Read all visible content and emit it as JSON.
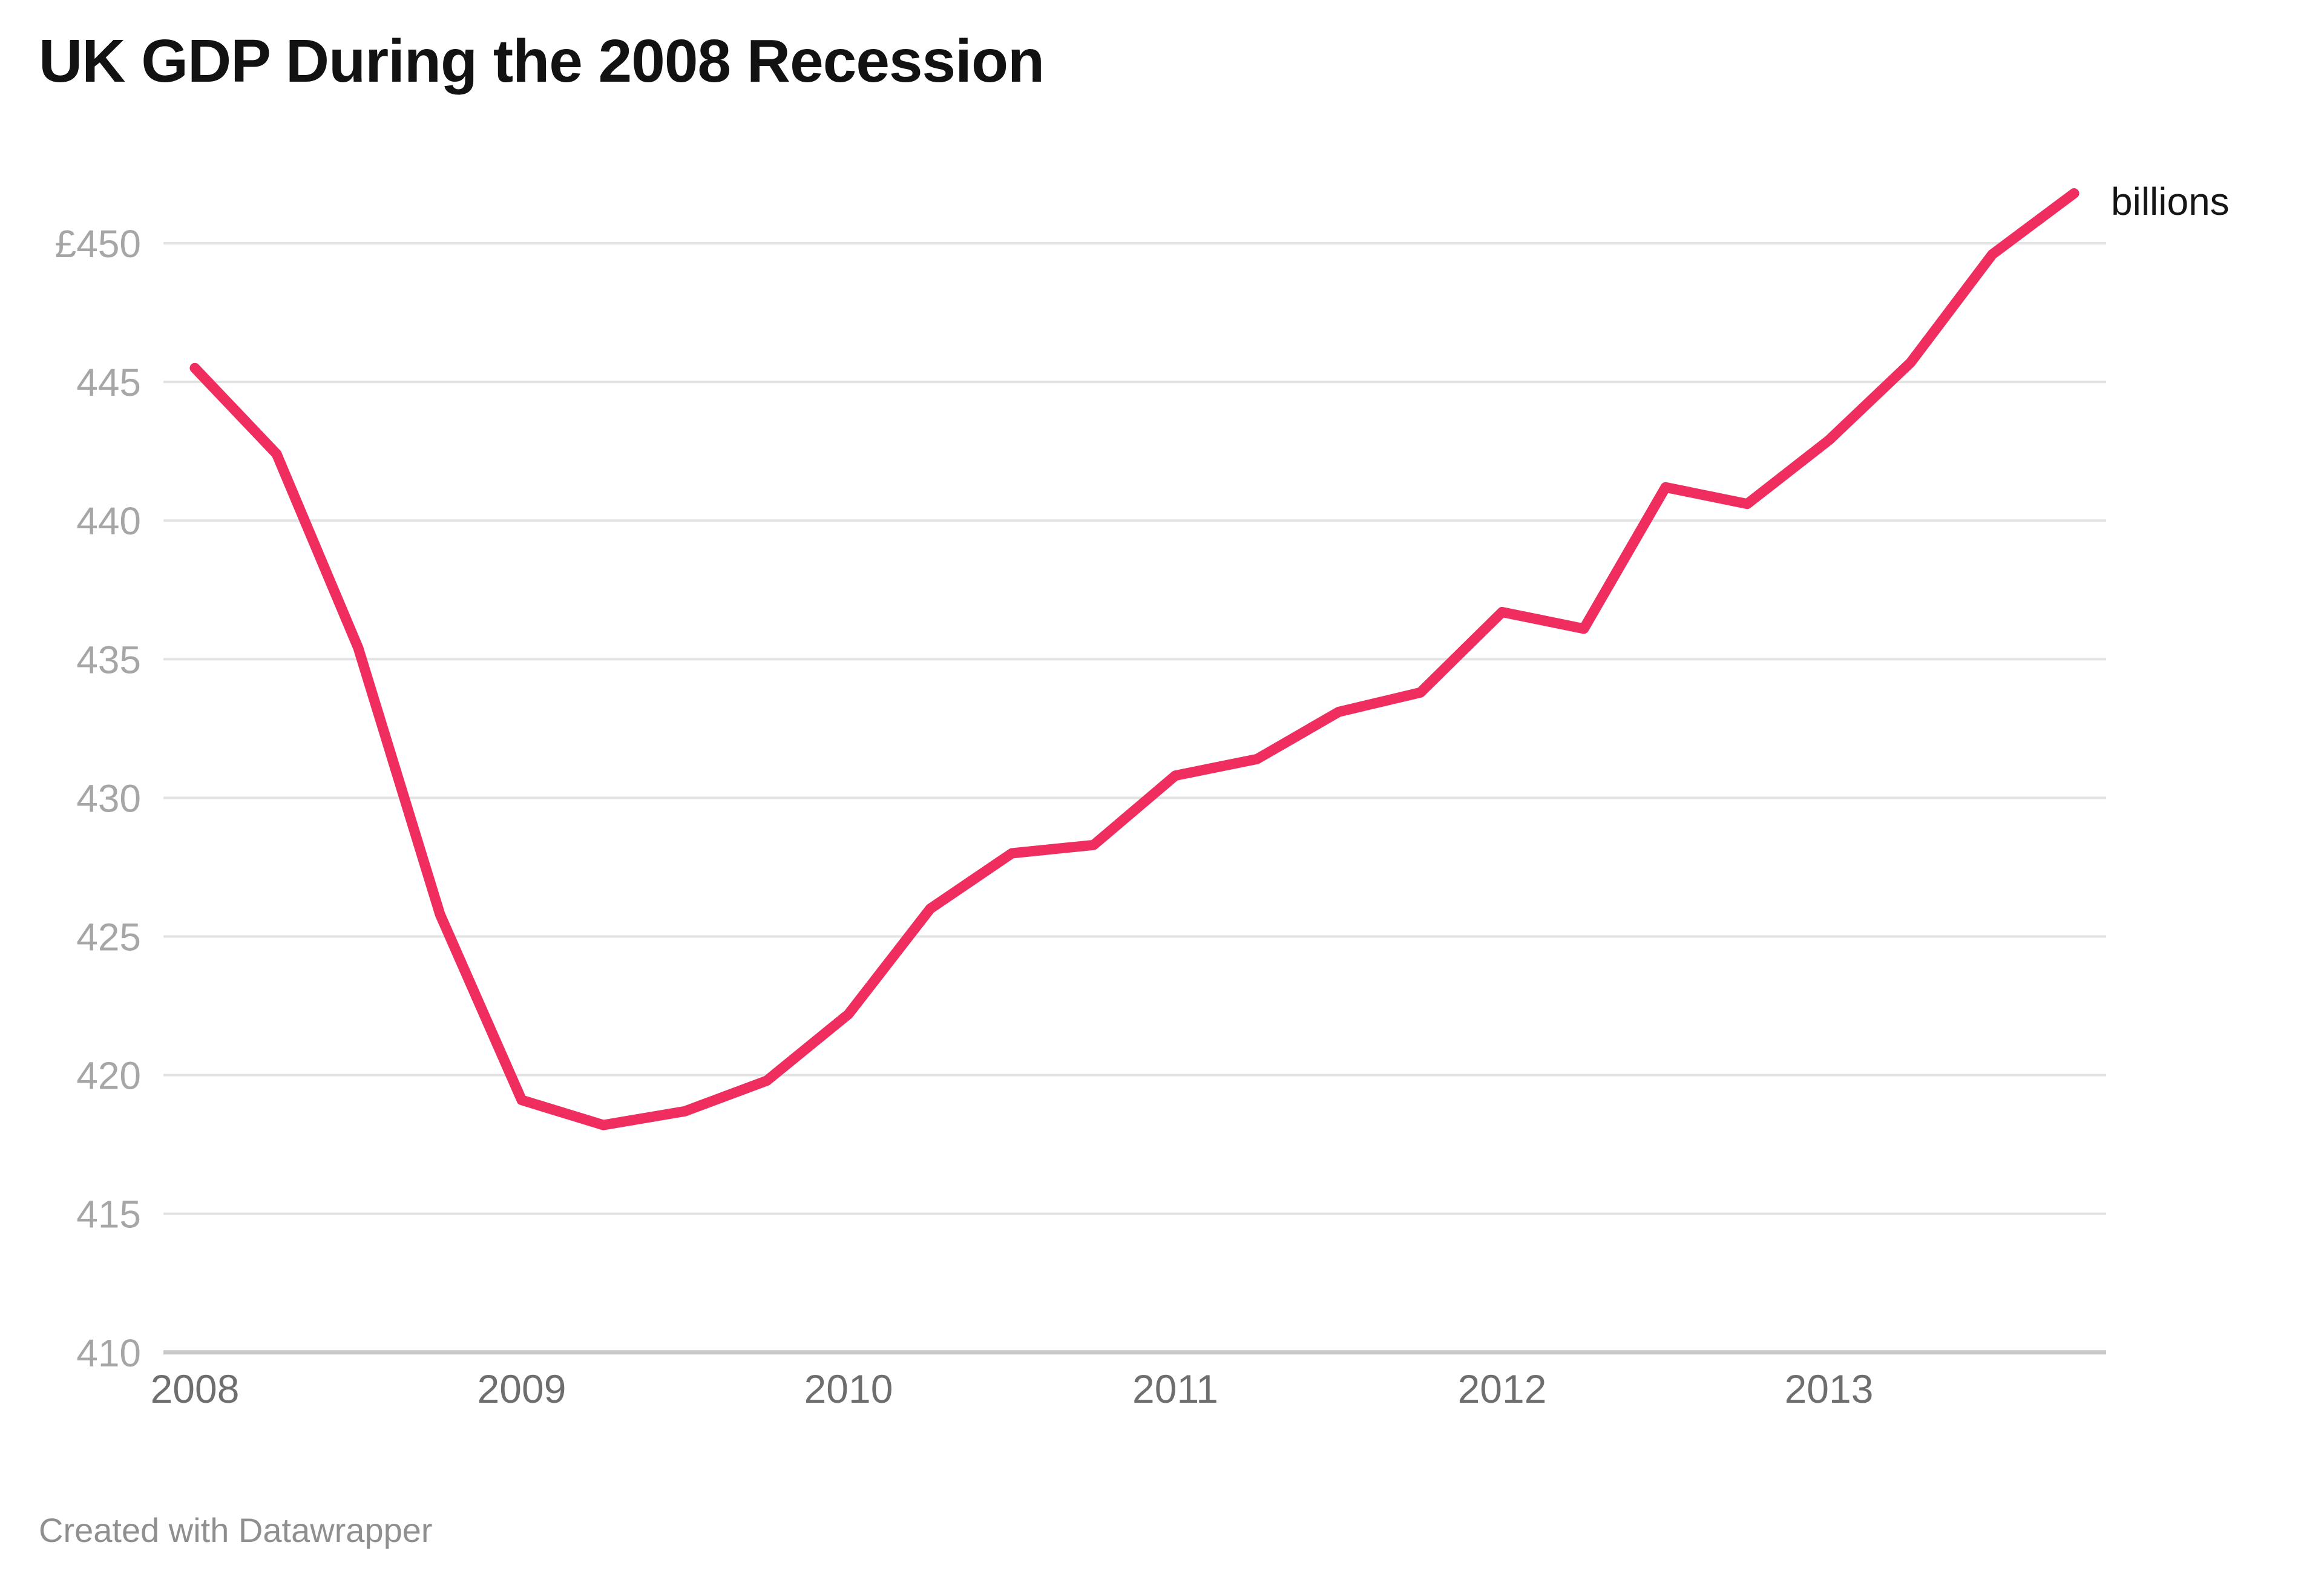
{
  "title": "UK GDP During the 2008 Recession",
  "annotations": {
    "unit_label": "billions"
  },
  "footer": {
    "credit": "Created with Datawrapper"
  },
  "colors": {
    "background": "#ffffff",
    "line": "#f02d5f",
    "gridline": "#e3e3e3",
    "baseline": "#c9c9c9",
    "title_text": "#121212",
    "y_tick_text": "#a6a6a6",
    "x_tick_text": "#6e6e6e",
    "footer_text": "#8f8f8f"
  },
  "chart_data": {
    "type": "line",
    "title": "UK GDP During the 2008 Recession",
    "unit_label": "billions",
    "xlabel": "",
    "ylabel": "",
    "currency_prefix": "£",
    "ylim": [
      410,
      452.5
    ],
    "grid": "horizontal",
    "legend_position": "none",
    "y_ticks": [
      {
        "label": "£450",
        "value": 450
      },
      {
        "label": "445",
        "value": 445
      },
      {
        "label": "440",
        "value": 440
      },
      {
        "label": "435",
        "value": 435
      },
      {
        "label": "430",
        "value": 430
      },
      {
        "label": "425",
        "value": 425
      },
      {
        "label": "420",
        "value": 420
      },
      {
        "label": "415",
        "value": 415
      },
      {
        "label": "410",
        "value": 410
      }
    ],
    "x_ticks": [
      "2008",
      "2009",
      "2010",
      "2011",
      "2012",
      "2013"
    ],
    "series": [
      {
        "name": "UK GDP",
        "periods": [
          "2008 Q1",
          "2008 Q2",
          "2008 Q3",
          "2008 Q4",
          "2009 Q1",
          "2009 Q2",
          "2009 Q3",
          "2009 Q4",
          "2010 Q1",
          "2010 Q2",
          "2010 Q3",
          "2010 Q4",
          "2011 Q1",
          "2011 Q2",
          "2011 Q3",
          "2011 Q4",
          "2012 Q1",
          "2012 Q2",
          "2012 Q3",
          "2012 Q4",
          "2013 Q1",
          "2013 Q2",
          "2013 Q3",
          "2013 Q4"
        ],
        "values": [
          445.5,
          442.4,
          435.4,
          425.8,
          419.1,
          418.2,
          418.7,
          419.8,
          422.2,
          426.0,
          428.0,
          428.3,
          430.8,
          431.4,
          433.1,
          433.8,
          436.7,
          436.1,
          441.2,
          440.6,
          442.9,
          445.7,
          449.6,
          451.8
        ]
      }
    ]
  }
}
